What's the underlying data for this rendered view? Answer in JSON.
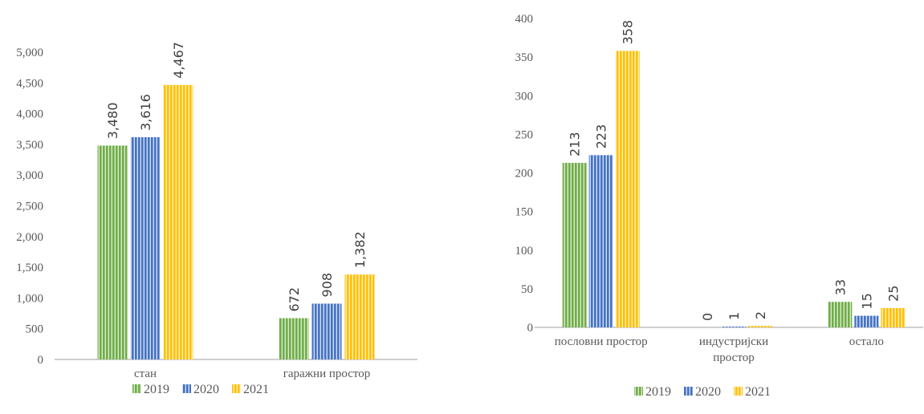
{
  "chart_data": [
    {
      "type": "bar",
      "categories": [
        [
          "стан"
        ],
        [
          "гаражни простор"
        ]
      ],
      "series": [
        {
          "name": "2019",
          "values": [
            3480,
            672
          ]
        },
        {
          "name": "2020",
          "values": [
            3616,
            908
          ]
        },
        {
          "name": "2021",
          "values": [
            4467,
            1382
          ]
        }
      ],
      "value_labels": [
        [
          "3,480",
          "672"
        ],
        [
          "3,616",
          "908"
        ],
        [
          "4,467",
          "1,382"
        ]
      ],
      "yticks": [
        "0",
        "500",
        "1,000",
        "1,500",
        "2,000",
        "2,500",
        "3,000",
        "3,500",
        "4,000",
        "4,500",
        "5,000"
      ],
      "ylim": [
        0,
        5000
      ],
      "grid": false,
      "legend": "bottom"
    },
    {
      "type": "bar",
      "categories": [
        [
          "пословни простор"
        ],
        [
          "индустријски",
          "простор"
        ],
        [
          "остало"
        ]
      ],
      "series": [
        {
          "name": "2019",
          "values": [
            213,
            0,
            33
          ]
        },
        {
          "name": "2020",
          "values": [
            223,
            1,
            15
          ]
        },
        {
          "name": "2021",
          "values": [
            358,
            2,
            25
          ]
        }
      ],
      "value_labels": [
        [
          "213",
          "0",
          "33"
        ],
        [
          "223",
          "1",
          "15"
        ],
        [
          "358",
          "2",
          "25"
        ]
      ],
      "yticks": [
        "0",
        "50",
        "100",
        "150",
        "200",
        "250",
        "300",
        "350",
        "400"
      ],
      "ylim": [
        0,
        400
      ],
      "grid": false,
      "legend": "bottom"
    }
  ],
  "colors": {
    "2019": "#70AD47",
    "2020": "#4472C4",
    "2021": "#FFC000",
    "axis": "#BFBFBF"
  }
}
